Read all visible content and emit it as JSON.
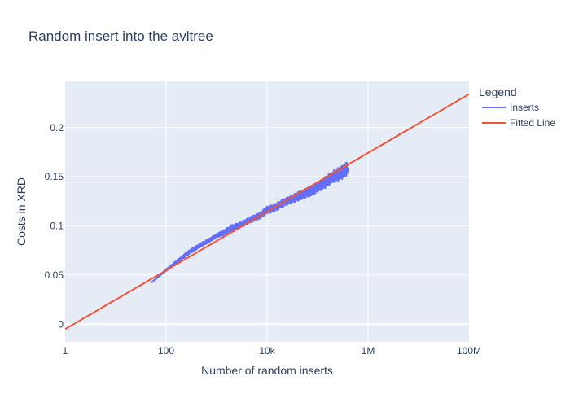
{
  "chart_data": {
    "type": "line",
    "title": "Random insert into the avltree",
    "xlabel": "Number of random inserts",
    "ylabel": "Costs in XRD",
    "x_scale": "log",
    "xlim": [
      1,
      100000000
    ],
    "ylim": [
      -0.018,
      0.247
    ],
    "x_ticks": [
      {
        "value": 1,
        "label": "1"
      },
      {
        "value": 100,
        "label": "100"
      },
      {
        "value": 10000,
        "label": "10k"
      },
      {
        "value": 1000000,
        "label": "1M"
      },
      {
        "value": 100000000,
        "label": "100M"
      }
    ],
    "y_ticks": [
      {
        "value": 0,
        "label": "0"
      },
      {
        "value": 0.05,
        "label": "0.05"
      },
      {
        "value": 0.1,
        "label": "0.1"
      },
      {
        "value": 0.15,
        "label": "0.15"
      },
      {
        "value": 0.2,
        "label": "0.2"
      }
    ],
    "grid": true,
    "legend": {
      "title": "Legend",
      "position": "top-right",
      "entries": [
        "Inserts",
        "Fitted Line"
      ]
    },
    "series": [
      {
        "name": "Inserts",
        "color": "#636efa",
        "x": [
          50,
          100,
          200,
          300,
          500,
          700,
          1000,
          1500,
          2000,
          3000,
          5000,
          7000,
          10000,
          15000,
          20000,
          30000,
          50000,
          70000,
          100000,
          150000,
          200000,
          300000,
          400000
        ],
        "y": [
          0.042,
          0.055,
          0.067,
          0.074,
          0.081,
          0.085,
          0.09,
          0.094,
          0.098,
          0.101,
          0.107,
          0.11,
          0.116,
          0.119,
          0.123,
          0.127,
          0.132,
          0.135,
          0.139,
          0.145,
          0.15,
          0.154,
          0.159
        ],
        "spread": [
          0.0,
          0.001,
          0.002,
          0.002,
          0.002,
          0.002,
          0.002,
          0.003,
          0.003,
          0.003,
          0.003,
          0.003,
          0.004,
          0.004,
          0.004,
          0.004,
          0.005,
          0.005,
          0.005,
          0.006,
          0.006,
          0.007,
          0.007
        ]
      },
      {
        "name": "Fitted Line",
        "color": "#ef553b",
        "x": [
          1,
          100000000
        ],
        "y": [
          -0.005,
          0.234
        ]
      }
    ]
  },
  "colors": {
    "plot_bg": "#e5ecf6",
    "grid": "#ffffff",
    "text": "#2a3f5f"
  }
}
